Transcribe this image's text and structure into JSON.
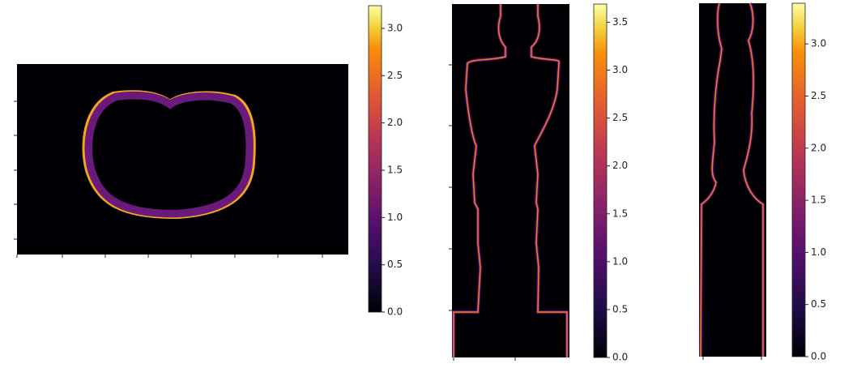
{
  "chart_data": [
    {
      "type": "image",
      "clim": [
        0,
        3.24
      ],
      "cticks": [
        {
          "value": 0,
          "label": "0.0"
        },
        0.5,
        {
          "value": 1,
          "label": "1.0"
        },
        1.5,
        {
          "value": 2,
          "label": "2.0"
        },
        2.5,
        {
          "value": 3,
          "label": "3.0"
        }
      ]
    },
    {
      "type": "image",
      "clim": [
        0,
        3.69
      ],
      "cticks": [
        {
          "value": 0,
          "label": "0.0"
        },
        0.5,
        {
          "value": 1,
          "label": "1.0"
        },
        1.5,
        {
          "value": 2,
          "label": "2.0"
        },
        2.5,
        {
          "value": 3,
          "label": "3.0"
        },
        3.5
      ]
    },
    {
      "type": "image",
      "clim": [
        0,
        3.39
      ],
      "cticks": [
        {
          "value": 0,
          "label": "0.0"
        },
        0.5,
        {
          "value": 1,
          "label": "1.0"
        },
        1.5,
        {
          "value": 2,
          "label": "2.0"
        },
        2.5,
        {
          "value": 3,
          "label": "3.0"
        }
      ]
    }
  ]
}
